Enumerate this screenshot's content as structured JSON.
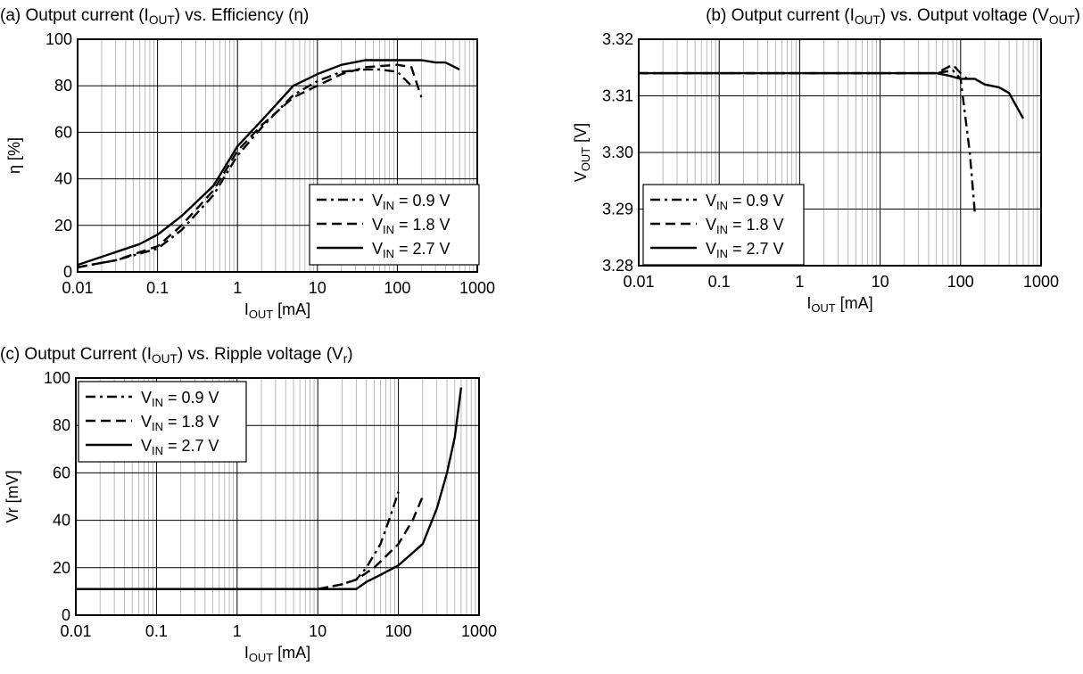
{
  "chart_data": [
    {
      "type": "line",
      "title": [
        {
          "t": "(a) Output current (I"
        },
        {
          "t": "OUT",
          "sub": true
        },
        {
          "t": ") vs. Efficiency (η)"
        }
      ],
      "xlabel": [
        {
          "t": "I"
        },
        {
          "t": "OUT",
          "sub": true
        },
        {
          "t": " [mA]"
        }
      ],
      "ylabel": [
        {
          "t": "η [%]"
        }
      ],
      "x_scale": "log",
      "xlim": [
        0.01,
        1000
      ],
      "ylim": [
        0,
        100
      ],
      "x_ticks": [
        {
          "v": 0.01,
          "label": "0.01"
        },
        {
          "v": 0.1,
          "label": "0.1"
        },
        {
          "v": 1,
          "label": "1"
        },
        {
          "v": 10,
          "label": "10"
        },
        {
          "v": 100,
          "label": "100"
        },
        {
          "v": 1000,
          "label": "1000"
        }
      ],
      "y_ticks": [
        {
          "v": 0,
          "label": "0"
        },
        {
          "v": 20,
          "label": "20"
        },
        {
          "v": 40,
          "label": "40"
        },
        {
          "v": 60,
          "label": "60"
        },
        {
          "v": 80,
          "label": "80"
        },
        {
          "v": 100,
          "label": "100"
        }
      ],
      "grid": true,
      "legend_position": "bottom-right",
      "series": [
        {
          "name": [
            {
              "t": "V"
            },
            {
              "t": "IN",
              "sub": true
            },
            {
              "t": " = 0.9 V"
            }
          ],
          "style": "dashdot",
          "points": [
            [
              0.01,
              2
            ],
            [
              0.03,
              5
            ],
            [
              0.1,
              10
            ],
            [
              0.2,
              18
            ],
            [
              0.5,
              33
            ],
            [
              1,
              50
            ],
            [
              2,
              62
            ],
            [
              5,
              76
            ],
            [
              10,
              82
            ],
            [
              20,
              86
            ],
            [
              40,
              87
            ],
            [
              60,
              87
            ],
            [
              100,
              86
            ],
            [
              150,
              80
            ]
          ]
        },
        {
          "name": [
            {
              "t": "V"
            },
            {
              "t": "IN",
              "sub": true
            },
            {
              "t": " = 1.8 V"
            }
          ],
          "style": "dashed",
          "points": [
            [
              0.01,
              2
            ],
            [
              0.03,
              5
            ],
            [
              0.1,
              11
            ],
            [
              0.2,
              20
            ],
            [
              0.5,
              35
            ],
            [
              1,
              52
            ],
            [
              2,
              63
            ],
            [
              5,
              75
            ],
            [
              10,
              80
            ],
            [
              20,
              85
            ],
            [
              40,
              88
            ],
            [
              100,
              89
            ],
            [
              150,
              88
            ],
            [
              200,
              75
            ]
          ]
        },
        {
          "name": [
            {
              "t": "V"
            },
            {
              "t": "IN",
              "sub": true
            },
            {
              "t": " = 2.7 V"
            }
          ],
          "style": "solid",
          "points": [
            [
              0.01,
              3
            ],
            [
              0.06,
              12
            ],
            [
              0.1,
              16
            ],
            [
              0.2,
              24
            ],
            [
              0.5,
              37
            ],
            [
              1,
              54
            ],
            [
              2,
              65
            ],
            [
              5,
              80
            ],
            [
              10,
              85
            ],
            [
              20,
              89
            ],
            [
              40,
              91
            ],
            [
              100,
              91
            ],
            [
              200,
              91
            ],
            [
              300,
              90
            ],
            [
              400,
              90
            ],
            [
              600,
              87
            ]
          ]
        }
      ]
    },
    {
      "type": "line",
      "title": [
        {
          "t": "(b) Output current (I"
        },
        {
          "t": "OUT",
          "sub": true
        },
        {
          "t": ") vs. Output voltage (V"
        },
        {
          "t": "OUT",
          "sub": true
        },
        {
          "t": ")"
        }
      ],
      "xlabel": [
        {
          "t": "I"
        },
        {
          "t": "OUT",
          "sub": true
        },
        {
          "t": " [mA]"
        }
      ],
      "ylabel": [
        {
          "t": "V"
        },
        {
          "t": "OUT",
          "sub": true
        },
        {
          "t": " [V]"
        }
      ],
      "x_scale": "log",
      "xlim": [
        0.01,
        1000
      ],
      "ylim": [
        3.28,
        3.32
      ],
      "x_ticks": [
        {
          "v": 0.01,
          "label": "0.01"
        },
        {
          "v": 0.1,
          "label": "0.1"
        },
        {
          "v": 1,
          "label": "1"
        },
        {
          "v": 10,
          "label": "10"
        },
        {
          "v": 100,
          "label": "100"
        },
        {
          "v": 1000,
          "label": "1000"
        }
      ],
      "y_ticks": [
        {
          "v": 3.28,
          "label": "3.28"
        },
        {
          "v": 3.29,
          "label": "3.29"
        },
        {
          "v": 3.3,
          "label": "3.30"
        },
        {
          "v": 3.31,
          "label": "3.31"
        },
        {
          "v": 3.32,
          "label": "3.32"
        }
      ],
      "grid": true,
      "legend_position": "bottom-left",
      "series": [
        {
          "name": [
            {
              "t": "V"
            },
            {
              "t": "IN",
              "sub": true
            },
            {
              "t": " = 0.9 V"
            }
          ],
          "style": "dashdot",
          "points": [
            [
              0.01,
              3.314
            ],
            [
              50,
              3.314
            ],
            [
              80,
              3.3145
            ],
            [
              100,
              3.313
            ],
            [
              130,
              3.3
            ],
            [
              150,
              3.2895
            ]
          ]
        },
        {
          "name": [
            {
              "t": "V"
            },
            {
              "t": "IN",
              "sub": true
            },
            {
              "t": " = 1.8 V"
            }
          ],
          "style": "dashed",
          "points": [
            [
              0.01,
              3.314
            ],
            [
              50,
              3.314
            ],
            [
              80,
              3.3155
            ],
            [
              100,
              3.314
            ],
            [
              120,
              3.313
            ]
          ]
        },
        {
          "name": [
            {
              "t": "V"
            },
            {
              "t": "IN",
              "sub": true
            },
            {
              "t": " = 2.7 V"
            }
          ],
          "style": "solid",
          "points": [
            [
              0.01,
              3.314
            ],
            [
              50,
              3.314
            ],
            [
              70,
              3.3136
            ],
            [
              100,
              3.313
            ],
            [
              150,
              3.313
            ],
            [
              200,
              3.312
            ],
            [
              300,
              3.3115
            ],
            [
              400,
              3.3105
            ],
            [
              600,
              3.306
            ]
          ]
        }
      ]
    },
    {
      "type": "line",
      "title": [
        {
          "t": "(c) Output Current (I"
        },
        {
          "t": "OUT",
          "sub": true
        },
        {
          "t": ") vs. Ripple voltage (V"
        },
        {
          "t": "r",
          "sub": true
        },
        {
          "t": ")"
        }
      ],
      "xlabel": [
        {
          "t": "I"
        },
        {
          "t": "OUT",
          "sub": true
        },
        {
          "t": " [mA]"
        }
      ],
      "ylabel": [
        {
          "t": "Vr [mV]"
        }
      ],
      "x_scale": "log",
      "xlim": [
        0.01,
        1000
      ],
      "ylim": [
        0,
        100
      ],
      "x_ticks": [
        {
          "v": 0.01,
          "label": "0.01"
        },
        {
          "v": 0.1,
          "label": "0.1"
        },
        {
          "v": 1,
          "label": "1"
        },
        {
          "v": 10,
          "label": "10"
        },
        {
          "v": 100,
          "label": "100"
        },
        {
          "v": 1000,
          "label": "1000"
        }
      ],
      "y_ticks": [
        {
          "v": 0,
          "label": "0"
        },
        {
          "v": 20,
          "label": "20"
        },
        {
          "v": 40,
          "label": "40"
        },
        {
          "v": 60,
          "label": "60"
        },
        {
          "v": 80,
          "label": "80"
        },
        {
          "v": 100,
          "label": "100"
        }
      ],
      "grid": true,
      "legend_position": "top-left",
      "series": [
        {
          "name": [
            {
              "t": "V"
            },
            {
              "t": "IN",
              "sub": true
            },
            {
              "t": " = 0.9 V"
            }
          ],
          "style": "dashdot",
          "points": [
            [
              0.01,
              11
            ],
            [
              10,
              11
            ],
            [
              20,
              13
            ],
            [
              30,
              15
            ],
            [
              40,
              20
            ],
            [
              60,
              30
            ],
            [
              80,
              42
            ],
            [
              100,
              52
            ]
          ]
        },
        {
          "name": [
            {
              "t": "V"
            },
            {
              "t": "IN",
              "sub": true
            },
            {
              "t": " = 1.8 V"
            }
          ],
          "style": "dashed",
          "points": [
            [
              0.01,
              11
            ],
            [
              10,
              11
            ],
            [
              20,
              13
            ],
            [
              30,
              15
            ],
            [
              50,
              20
            ],
            [
              100,
              30
            ],
            [
              150,
              40
            ],
            [
              200,
              50
            ]
          ]
        },
        {
          "name": [
            {
              "t": "V"
            },
            {
              "t": "IN",
              "sub": true
            },
            {
              "t": " = 2.7 V"
            }
          ],
          "style": "solid",
          "points": [
            [
              0.01,
              11
            ],
            [
              10,
              11
            ],
            [
              30,
              11
            ],
            [
              40,
              14
            ],
            [
              60,
              17
            ],
            [
              100,
              21
            ],
            [
              200,
              30
            ],
            [
              300,
              45
            ],
            [
              400,
              60
            ],
            [
              500,
              75
            ],
            [
              600,
              96
            ]
          ]
        }
      ]
    }
  ]
}
